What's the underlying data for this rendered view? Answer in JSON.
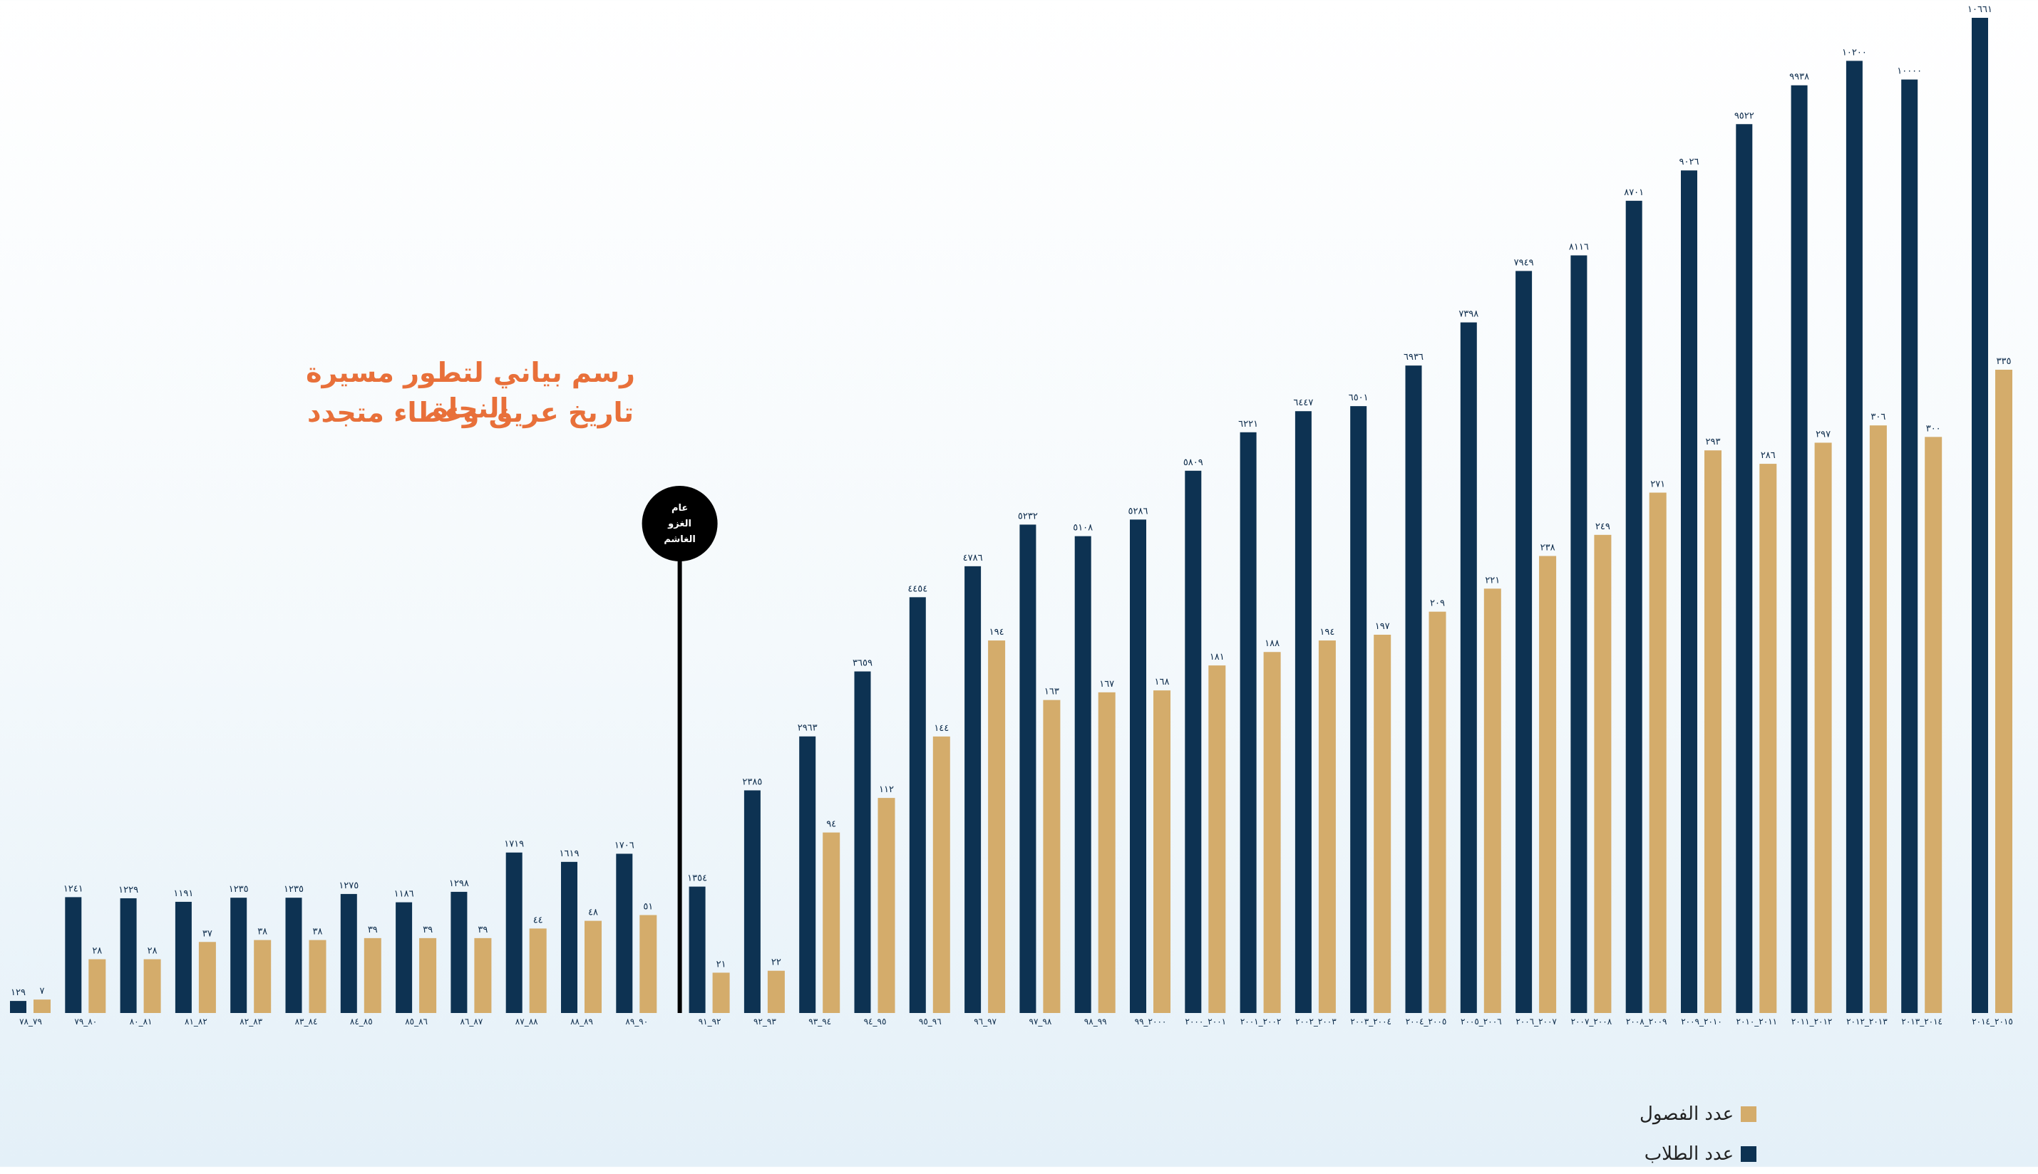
{
  "chart_data": {
    "type": "bar",
    "title": "رسم بياني لتطور مسيرة النجاة",
    "subtitle": "تاريخ عريق وعطاء متجدد",
    "xlabel": "",
    "ylabel": "",
    "grid": false,
    "legend_position": "bottom-right",
    "categories": [
      "٧٩_٧٨",
      "٨٠_٧٩",
      "٨١_٨٠",
      "٨٢_٨١",
      "٨٣_٨٢",
      "٨٤_٨٣",
      "٨٥_٨٤",
      "٨٦_٨٥",
      "٨٧_٨٦",
      "٨٨_٨٧",
      "٨٩_٨٨",
      "٩٠_٨٩",
      "٩٢_٩١",
      "٩٣_٩٢",
      "٩٤_٩٣",
      "٩٥_٩٤",
      "٩٦_٩٥",
      "٩٧_٩٦",
      "٩٨_٩٧",
      "٩٩_٩٨",
      "٢٠٠٠_٩٩",
      "٢٠٠١_٢٠٠٠",
      "٢٠٠٢_٢٠٠١",
      "٢٠٠٣_٢٠٠٢",
      "٢٠٠٤_٢٠٠٣",
      "٢٠٠٥_٢٠٠٤",
      "٢٠٠٦_٢٠٠٥",
      "٢٠٠٧_٢٠٠٦",
      "٢٠٠٨_٢٠٠٧",
      "٢٠٠٩_٢٠٠٨",
      "٢٠١٠_٢٠٠٩",
      "٢٠١١_٢٠١٠",
      "٢٠١٢_٢٠١١",
      "٢٠١٣_٢٠١٢",
      "٢٠١٤_٢٠١٣",
      "٢٠١٥_٢٠١٤"
    ],
    "series": [
      {
        "name": "عدد الطلاب",
        "color": "#0d3252",
        "values": [
          129,
          1241,
          1229,
          1191,
          1235,
          1235,
          1275,
          1186,
          1298,
          1719,
          1619,
          1706,
          1354,
          2385,
          2963,
          3659,
          4454,
          4786,
          5232,
          5108,
          5286,
          5809,
          6221,
          6447,
          6501,
          6936,
          7398,
          7949,
          8116,
          8701,
          9026,
          9522,
          9938,
          10200,
          10000,
          10661
        ],
        "labels": [
          "١٢٩",
          "١٢٤١",
          "١٢٢٩",
          "١١٩١",
          "١٢٣٥",
          "١٢٣٥",
          "١٢٧٥",
          "١١٨٦",
          "١٢٩٨",
          "١٧١٩",
          "١٦١٩",
          "١٧٠٦",
          "١٣٥٤",
          "٢٣٨٥",
          "٢٩٦٣",
          "٣٦٥٩",
          "٤٤٥٤",
          "٤٧٨٦",
          "٥٢٣٢",
          "٥١٠٨",
          "٥٢٨٦",
          "٥٨٠٩",
          "٦٢٢١",
          "٦٤٤٧",
          "٦٥٠١",
          "٦٩٣٦",
          "٧٣٩٨",
          "٧٩٤٩",
          "٨١١٦",
          "٨٧٠١",
          "٩٠٢٦",
          "٩٥٢٢",
          "٩٩٣٨",
          "١٠٢٠٠",
          "١٠٠٠٠",
          "١٠٦٦١"
        ]
      },
      {
        "name": "عدد الفصول",
        "color": "#d4ac6b",
        "values": [
          7,
          28,
          28,
          37,
          38,
          38,
          39,
          39,
          39,
          44,
          48,
          51,
          21,
          22,
          94,
          112,
          144,
          194,
          163,
          167,
          168,
          181,
          188,
          194,
          197,
          209,
          221,
          238,
          249,
          271,
          293,
          286,
          297,
          306,
          300,
          335
        ],
        "labels": [
          "٧",
          "٢٨",
          "٢٨",
          "٣٧",
          "٣٨",
          "٣٨",
          "٣٩",
          "٣٩",
          "٣٩",
          "٤٤",
          "٤٨",
          "٥١",
          "٢١",
          "٢٢",
          "٩٤",
          "١١٢",
          "١٤٤",
          "١٩٤",
          "١٦٣",
          "١٦٧",
          "١٦٨",
          "١٨١",
          "١٨٨",
          "١٩٤",
          "١٩٧",
          "٢٠٩",
          "٢٢١",
          "٢٣٨",
          "٢٤٩",
          "٢٧١",
          "٢٩٣",
          "٢٨٦",
          "٢٩٧",
          "٣٠٦",
          "٣٠٠",
          "٣٣٥"
        ]
      }
    ],
    "annotation": {
      "lines": [
        "عام",
        "الغزو",
        "الغاشم"
      ],
      "after_category_index": 11,
      "color": "#000000"
    }
  }
}
